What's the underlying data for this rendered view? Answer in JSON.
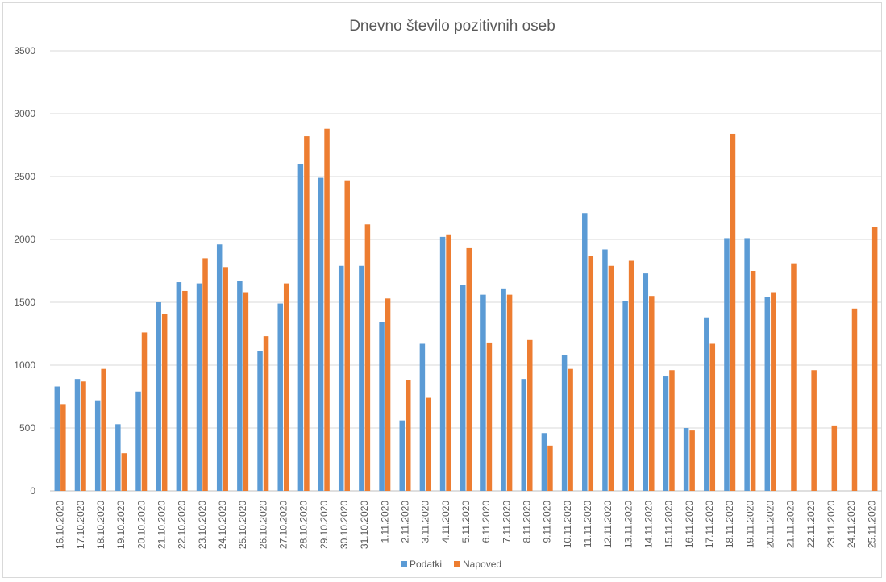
{
  "chart_data": {
    "type": "bar",
    "title": "Dnevno število pozitivnih oseb",
    "xlabel": "",
    "ylabel": "",
    "ylim": [
      0,
      3500
    ],
    "yticks": [
      0,
      500,
      1000,
      1500,
      2000,
      2500,
      3000,
      3500
    ],
    "ytick_labels": [
      "0",
      "500",
      "1000",
      "1500",
      "2000",
      "2500",
      "3000",
      "3500"
    ],
    "grid": true,
    "legend_position": "bottom",
    "categories": [
      "16.10.2020",
      "17.10.2020",
      "18.10.2020",
      "19.10.2020",
      "20.10.2020",
      "21.10.2020",
      "22.10.2020",
      "23.10.2020",
      "24.10.2020",
      "25.10.2020",
      "26.10.2020",
      "27.10.2020",
      "28.10.2020",
      "29.10.2020",
      "30.10.2020",
      "31.10.2020",
      "1.11.2020",
      "2.11.2020",
      "3.11.2020",
      "4.11.2020",
      "5.11.2020",
      "6.11.2020",
      "7.11.2020",
      "8.11.2020",
      "9.11.2020",
      "10.11.2020",
      "11.11.2020",
      "12.11.2020",
      "13.11.2020",
      "14.11.2020",
      "15.11.2020",
      "16.11.2020",
      "17.11.2020",
      "18.11.2020",
      "19.11.2020",
      "20.11.2020",
      "21.11.2020",
      "22.11.2020",
      "23.11.2020",
      "24.11.2020",
      "25.11.2020"
    ],
    "series": [
      {
        "name": "Podatki",
        "color": "#5b9bd5",
        "values": [
          830,
          890,
          720,
          530,
          790,
          1500,
          1660,
          1650,
          1960,
          1670,
          1110,
          1490,
          2600,
          2490,
          1790,
          1790,
          1340,
          560,
          1170,
          2020,
          1640,
          1560,
          1610,
          890,
          460,
          1080,
          2210,
          1920,
          1510,
          1730,
          910,
          500,
          1380,
          2010,
          2010,
          1540,
          null,
          null,
          null,
          null,
          null
        ]
      },
      {
        "name": "Napoved",
        "color": "#ed7d31",
        "values": [
          690,
          870,
          970,
          300,
          1260,
          1410,
          1590,
          1850,
          1780,
          1580,
          1230,
          1650,
          2820,
          2880,
          2470,
          2120,
          1530,
          880,
          740,
          2040,
          1930,
          1180,
          1560,
          1200,
          360,
          970,
          1870,
          1790,
          1830,
          1550,
          960,
          480,
          1170,
          2840,
          1750,
          1580,
          1810,
          960,
          520,
          1450,
          2100
        ]
      }
    ]
  }
}
